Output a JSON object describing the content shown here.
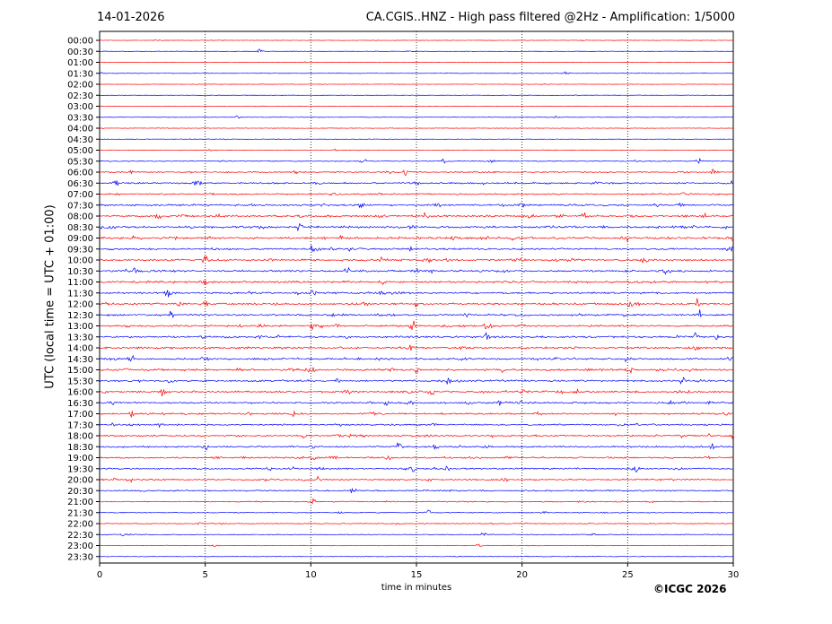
{
  "header": {
    "date": "14-01-2026",
    "title": "CA.CGIS..HNZ - High pass filtered @2Hz - Amplification: 1/5000"
  },
  "footer": {
    "copyright": "©ICGC 2026"
  },
  "chart_data": {
    "type": "line",
    "title": "CA.CGIS..HNZ - High pass filtered @2Hz - Amplification: 1/5000",
    "xlabel": "time in minutes",
    "ylabel": "UTC (local time = UTC + 01:00)",
    "xlim": [
      0,
      30
    ],
    "x_ticks": [
      0,
      5,
      10,
      15,
      20,
      25,
      30
    ],
    "vertical_gridlines_at": [
      5,
      10,
      15,
      20,
      25
    ],
    "row_labels": [
      "00:00",
      "00:30",
      "01:00",
      "01:30",
      "02:00",
      "02:30",
      "03:00",
      "03:30",
      "04:00",
      "04:30",
      "05:00",
      "05:30",
      "06:00",
      "06:30",
      "07:00",
      "07:30",
      "08:00",
      "08:30",
      "09:00",
      "09:30",
      "10:00",
      "10:30",
      "11:00",
      "11:30",
      "12:00",
      "12:30",
      "13:00",
      "13:30",
      "14:00",
      "14:30",
      "15:00",
      "15:30",
      "16:00",
      "16:30",
      "17:00",
      "17:30",
      "18:00",
      "18:30",
      "19:00",
      "19:30",
      "20:00",
      "20:30",
      "21:00",
      "21:30",
      "22:00",
      "22:30",
      "23:00",
      "23:30"
    ],
    "row_colors": [
      "#ff0000",
      "#0000ff"
    ],
    "row_noise_levels": [
      0.05,
      0.06,
      0.05,
      0.06,
      0.05,
      0.06,
      0.07,
      0.08,
      0.08,
      0.1,
      0.15,
      0.25,
      0.45,
      0.6,
      0.5,
      0.65,
      0.7,
      0.8,
      0.8,
      0.7,
      0.75,
      0.75,
      0.75,
      0.7,
      0.7,
      0.7,
      0.7,
      0.65,
      0.7,
      0.7,
      0.7,
      0.7,
      0.7,
      0.65,
      0.6,
      0.55,
      0.6,
      0.6,
      0.55,
      0.55,
      0.55,
      0.45,
      0.35,
      0.25,
      0.25,
      0.2,
      0.15,
      0.1
    ],
    "events": [
      {
        "row": 0,
        "t": 22.9,
        "a": 0.3
      },
      {
        "row": 1,
        "t": 7.6,
        "a": 0.35
      },
      {
        "row": 3,
        "t": 22.1,
        "a": 0.3
      },
      {
        "row": 7,
        "t": 6.5,
        "a": 0.4
      },
      {
        "row": 11,
        "t": 5.8,
        "a": 0.4
      },
      {
        "row": 11,
        "t": 16.3,
        "a": 0.6
      },
      {
        "row": 11,
        "t": 28.4,
        "a": 0.55
      },
      {
        "row": 12,
        "t": 1.5,
        "a": 0.5
      },
      {
        "row": 12,
        "t": 14.5,
        "a": 0.8
      },
      {
        "row": 12,
        "t": 29.1,
        "a": 0.7
      },
      {
        "row": 13,
        "t": 0.8,
        "a": 0.5
      },
      {
        "row": 13,
        "t": 4.6,
        "a": 0.6
      },
      {
        "row": 13,
        "t": 10.4,
        "a": 0.55
      },
      {
        "row": 13,
        "t": 15.0,
        "a": 0.5
      },
      {
        "row": 14,
        "t": 27.6,
        "a": 0.45
      },
      {
        "row": 15,
        "t": 12.4,
        "a": 0.55
      },
      {
        "row": 15,
        "t": 16.0,
        "a": 0.6
      },
      {
        "row": 15,
        "t": 20.0,
        "a": 0.5
      },
      {
        "row": 16,
        "t": 2.8,
        "a": 0.55
      },
      {
        "row": 16,
        "t": 9.5,
        "a": 0.5
      },
      {
        "row": 16,
        "t": 15.4,
        "a": 0.6
      },
      {
        "row": 16,
        "t": 22.9,
        "a": 0.5
      },
      {
        "row": 17,
        "t": 0.2,
        "a": 0.7
      },
      {
        "row": 17,
        "t": 9.5,
        "a": 0.65
      },
      {
        "row": 17,
        "t": 14.8,
        "a": 0.7
      },
      {
        "row": 18,
        "t": 1.6,
        "a": 0.5
      },
      {
        "row": 18,
        "t": 19.6,
        "a": 0.5
      },
      {
        "row": 18,
        "t": 24.9,
        "a": 0.55
      },
      {
        "row": 18,
        "t": 29.9,
        "a": 0.6
      },
      {
        "row": 19,
        "t": 10.1,
        "a": 0.55
      },
      {
        "row": 19,
        "t": 29.9,
        "a": 0.45
      },
      {
        "row": 20,
        "t": 5.0,
        "a": 0.8
      },
      {
        "row": 20,
        "t": 13.4,
        "a": 0.7
      },
      {
        "row": 20,
        "t": 20.0,
        "a": 0.65
      },
      {
        "row": 21,
        "t": 1.7,
        "a": 0.55
      },
      {
        "row": 21,
        "t": 11.7,
        "a": 0.55
      },
      {
        "row": 21,
        "t": 15.0,
        "a": 0.5
      },
      {
        "row": 22,
        "t": 5.0,
        "a": 0.55
      },
      {
        "row": 22,
        "t": 13.4,
        "a": 0.6
      },
      {
        "row": 22,
        "t": 25.0,
        "a": 0.55
      },
      {
        "row": 23,
        "t": 3.2,
        "a": 0.55
      },
      {
        "row": 23,
        "t": 10.1,
        "a": 0.5
      },
      {
        "row": 23,
        "t": 28.3,
        "a": 0.5
      },
      {
        "row": 24,
        "t": 5.0,
        "a": 0.55
      },
      {
        "row": 24,
        "t": 15.0,
        "a": 0.55
      },
      {
        "row": 24,
        "t": 28.3,
        "a": 0.6
      },
      {
        "row": 25,
        "t": 3.4,
        "a": 0.55
      },
      {
        "row": 25,
        "t": 17.4,
        "a": 0.7
      },
      {
        "row": 25,
        "t": 24.8,
        "a": 0.55
      },
      {
        "row": 25,
        "t": 28.4,
        "a": 0.55
      },
      {
        "row": 26,
        "t": 10.0,
        "a": 0.55
      },
      {
        "row": 26,
        "t": 14.8,
        "a": 0.75
      },
      {
        "row": 26,
        "t": 18.3,
        "a": 0.5
      },
      {
        "row": 27,
        "t": 4.9,
        "a": 0.5
      },
      {
        "row": 27,
        "t": 11.7,
        "a": 0.5
      },
      {
        "row": 27,
        "t": 18.3,
        "a": 0.5
      },
      {
        "row": 27,
        "t": 28.2,
        "a": 0.55
      },
      {
        "row": 28,
        "t": 14.7,
        "a": 0.5
      },
      {
        "row": 28,
        "t": 28.2,
        "a": 0.65
      },
      {
        "row": 29,
        "t": 1.5,
        "a": 0.55
      },
      {
        "row": 29,
        "t": 21.6,
        "a": 0.5
      },
      {
        "row": 29,
        "t": 29.9,
        "a": 0.6
      },
      {
        "row": 30,
        "t": 6.6,
        "a": 0.5
      },
      {
        "row": 30,
        "t": 10.1,
        "a": 0.45
      },
      {
        "row": 30,
        "t": 15.0,
        "a": 0.55
      },
      {
        "row": 30,
        "t": 19.1,
        "a": 0.5
      },
      {
        "row": 30,
        "t": 25.1,
        "a": 0.5
      },
      {
        "row": 31,
        "t": 16.5,
        "a": 0.55
      },
      {
        "row": 31,
        "t": 27.6,
        "a": 0.6
      },
      {
        "row": 32,
        "t": 3.0,
        "a": 0.55
      },
      {
        "row": 32,
        "t": 15.7,
        "a": 0.6
      },
      {
        "row": 32,
        "t": 22.6,
        "a": 0.5
      },
      {
        "row": 32,
        "t": 27.4,
        "a": 0.45
      },
      {
        "row": 33,
        "t": 13.6,
        "a": 0.6
      },
      {
        "row": 33,
        "t": 18.9,
        "a": 0.55
      },
      {
        "row": 33,
        "t": 27.8,
        "a": 0.65
      },
      {
        "row": 34,
        "t": 1.5,
        "a": 0.55
      },
      {
        "row": 34,
        "t": 9.2,
        "a": 0.45
      },
      {
        "row": 35,
        "t": 15.8,
        "a": 0.45
      },
      {
        "row": 36,
        "t": 9.6,
        "a": 0.55
      },
      {
        "row": 36,
        "t": 29.9,
        "a": 0.5
      },
      {
        "row": 37,
        "t": 5.0,
        "a": 0.8
      },
      {
        "row": 37,
        "t": 14.2,
        "a": 0.65
      },
      {
        "row": 37,
        "t": 15.9,
        "a": 0.6
      },
      {
        "row": 37,
        "t": 29.0,
        "a": 0.6
      },
      {
        "row": 38,
        "t": 10.1,
        "a": 0.5
      },
      {
        "row": 38,
        "t": 13.7,
        "a": 0.55
      },
      {
        "row": 38,
        "t": 28.8,
        "a": 0.5
      },
      {
        "row": 39,
        "t": 9.1,
        "a": 0.45
      },
      {
        "row": 39,
        "t": 14.8,
        "a": 0.55
      },
      {
        "row": 39,
        "t": 16.4,
        "a": 0.65
      },
      {
        "row": 39,
        "t": 25.4,
        "a": 0.5
      },
      {
        "row": 40,
        "t": 1.4,
        "a": 0.55
      },
      {
        "row": 40,
        "t": 10.4,
        "a": 0.45
      },
      {
        "row": 40,
        "t": 19.2,
        "a": 0.6
      },
      {
        "row": 41,
        "t": 12.0,
        "a": 0.5
      },
      {
        "row": 42,
        "t": 10.1,
        "a": 0.45
      },
      {
        "row": 43,
        "t": 15.5,
        "a": 0.35
      },
      {
        "row": 45,
        "t": 18.2,
        "a": 0.55
      }
    ]
  }
}
